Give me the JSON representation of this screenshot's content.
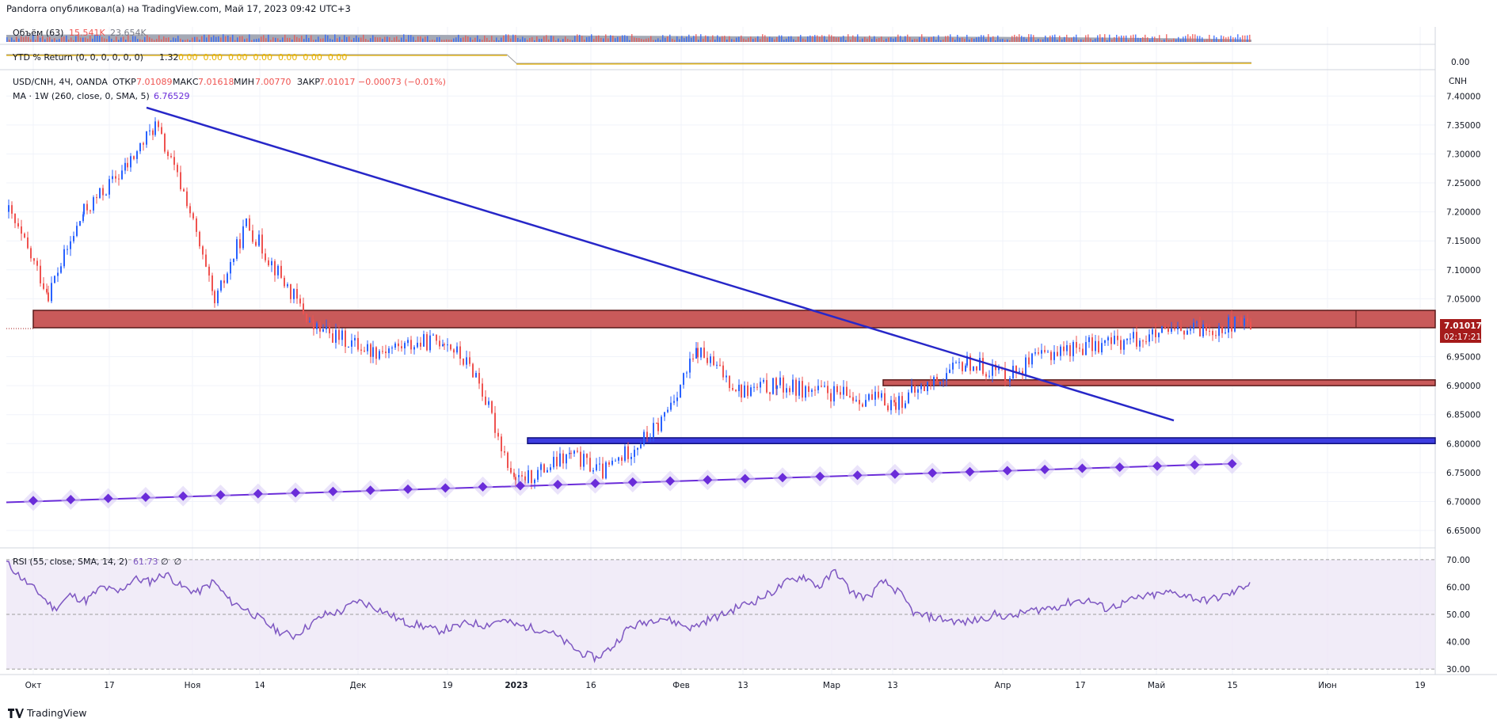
{
  "header": {
    "published": "Pandorra опубликовал(а) на TradingView.com, Май 17, 2023 09:42 UTC+3"
  },
  "footer": {
    "brand": "TradingView"
  },
  "volume_pane": {
    "label": "Объём (63)",
    "v1": "15.541K",
    "v2": "23.654K"
  },
  "ytd_pane": {
    "label": "YTD % Return (0, 0, 0, 0, 0, 0)",
    "value": "1.32",
    "zeros": "0.00  0.00  0.00  0.00  0.00  0.00  0.00",
    "axis_value": "0.00"
  },
  "price_legend": {
    "symbol": "USD/CNH, 4Ч, OANDA",
    "open_label": "ОТКР",
    "open": "7.01089",
    "high_label": "МАКС",
    "high": "7.01618",
    "low_label": "МИН",
    "low": "7.00770",
    "close_label": "ЗАКР",
    "close": "7.01017",
    "change": "−0.00073 (−0.01%)",
    "ma_label": "MA · 1W (260, close, 0, SMA, 5)",
    "ma_value": "6.76529"
  },
  "price_axis": {
    "unit": "CNH",
    "ticks": [
      "7.40000",
      "7.35000",
      "7.30000",
      "7.25000",
      "7.20000",
      "7.15000",
      "7.10000",
      "7.05000",
      "6.95000",
      "6.90000",
      "6.85000",
      "6.80000",
      "6.75000",
      "6.70000",
      "6.65000"
    ],
    "last_price": "7.01017",
    "countdown": "02:17:21"
  },
  "rsi_pane": {
    "label": "RSI (55, close, SMA, 14, 2)",
    "value": "61.73",
    "extra": "∅  ∅",
    "ticks": [
      "70.00",
      "60.00",
      "50.00",
      "40.00",
      "30.00"
    ]
  },
  "time_axis": {
    "labels": [
      "Окт",
      "17",
      "Ноя",
      "14",
      "Дек",
      "19",
      "2023",
      "16",
      "Фев",
      "13",
      "Мар",
      "13",
      "Апр",
      "17",
      "Май",
      "15",
      "Июн",
      "19"
    ]
  },
  "colors": {
    "zone_red": "#c95a5a",
    "zone_blue": "#2a2ad6",
    "trendline": "#2727c8",
    "ma": "#6a2cd9",
    "rsi": "#7e57c2",
    "up": "#2962ff",
    "down": "#ef5350"
  },
  "chart_data": [
    {
      "type": "candlestick",
      "symbol": "USD/CNH",
      "timeframe": "4H",
      "ylim": [
        6.62,
        7.44
      ],
      "x_labels": [
        "Окт",
        "17",
        "Ноя",
        "14",
        "Дек",
        "19",
        "2023",
        "16",
        "Фев",
        "13",
        "Мар",
        "13",
        "Апр",
        "17",
        "Май",
        "15",
        "Июн",
        "19"
      ],
      "close_path": [
        {
          "x": "Окт",
          "y": 7.2
        },
        {
          "x": "Окт",
          "y": 7.06
        },
        {
          "x": "17",
          "y": 7.2
        },
        {
          "x": "17",
          "y": 7.28
        },
        {
          "x": "Ноя",
          "y": 7.35
        },
        {
          "x": "Ноя",
          "y": 7.22
        },
        {
          "x": "14",
          "y": 7.04
        },
        {
          "x": "14",
          "y": 7.18
        },
        {
          "x": "Дек",
          "y": 7.0
        },
        {
          "x": "Дек",
          "y": 6.96
        },
        {
          "x": "19",
          "y": 6.98
        },
        {
          "x": "2023",
          "y": 6.92
        },
        {
          "x": "16",
          "y": 6.73
        },
        {
          "x": "16",
          "y": 6.78
        },
        {
          "x": "Фев",
          "y": 6.75
        },
        {
          "x": "13",
          "y": 6.83
        },
        {
          "x": "Мар",
          "y": 6.96
        },
        {
          "x": "Мар",
          "y": 6.89
        },
        {
          "x": "13",
          "y": 6.9
        },
        {
          "x": "Апр",
          "y": 6.88
        },
        {
          "x": "17",
          "y": 6.87
        },
        {
          "x": "Май",
          "y": 6.94
        },
        {
          "x": "Май",
          "y": 6.92
        },
        {
          "x": "15",
          "y": 6.96
        },
        {
          "x": "15",
          "y": 7.01017
        }
      ],
      "resistance_zone": [
        7.0,
        7.03
      ],
      "mid_zone": [
        6.9,
        6.91
      ],
      "support_zone": [
        6.8,
        6.81
      ],
      "trendline": [
        {
          "x": "17",
          "y": 7.38
        },
        {
          "x": "17",
          "y": 6.84
        }
      ],
      "ma_1w_260": {
        "start": 6.7,
        "end": 6.76529
      }
    },
    {
      "type": "line",
      "name": "RSI (55, close, SMA, 14, 2)",
      "ylim": [
        28,
        72
      ],
      "bands": [
        30,
        50,
        70
      ],
      "values": [
        69,
        63,
        58,
        52,
        57,
        55,
        60,
        58,
        63,
        62,
        65,
        60,
        58,
        62,
        55,
        52,
        48,
        44,
        42,
        46,
        50,
        51,
        55,
        53,
        50,
        47,
        46,
        44,
        45,
        47,
        46,
        48,
        46,
        45,
        44,
        40,
        36,
        34,
        38,
        45,
        47,
        49,
        47,
        45,
        48,
        50,
        53,
        55,
        58,
        62,
        64,
        60,
        66,
        58,
        56,
        62,
        58,
        50,
        49,
        48,
        47,
        48,
        50,
        49,
        51,
        52,
        53,
        55,
        55,
        52,
        54,
        56,
        57,
        58,
        57,
        55,
        56,
        58,
        61.73
      ]
    }
  ]
}
